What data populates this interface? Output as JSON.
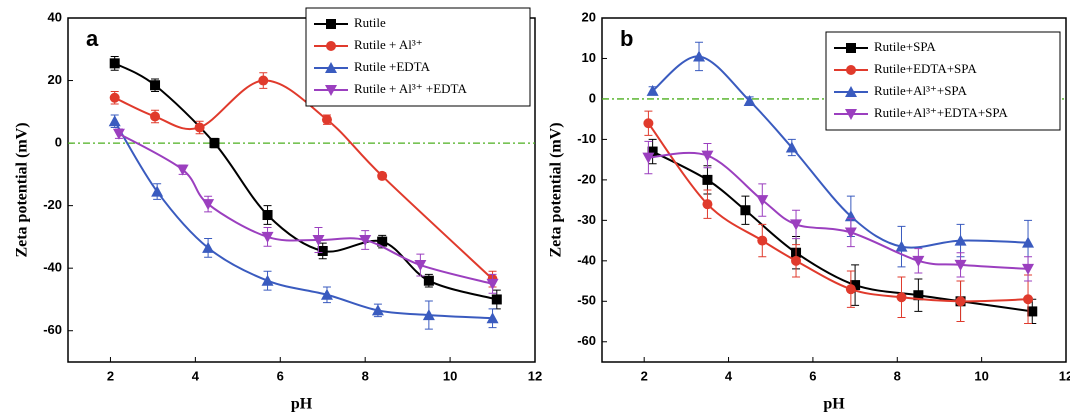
{
  "chart_data": [
    {
      "type": "line",
      "panel_label": "a",
      "x_label": "pH",
      "y_label": "Zeta potential (mV)",
      "xlim": [
        1,
        12
      ],
      "xticks": [
        2,
        4,
        6,
        8,
        10,
        12
      ],
      "ylim": [
        -70,
        40
      ],
      "yticks": [
        -60,
        -40,
        -20,
        0,
        20,
        40
      ],
      "hline": 0,
      "hline_color": "#4caf1f",
      "legend": "upper right",
      "series": [
        {
          "name": "Rutile",
          "color": "#000000",
          "marker": "square",
          "x": [
            2.1,
            3.05,
            4.45,
            5.7,
            7.0,
            8.4,
            9.5,
            11.1
          ],
          "values": [
            25.5,
            18.5,
            0,
            -23,
            -34.5,
            -31.5,
            -44,
            -50
          ],
          "errors": [
            2.2,
            2,
            1.5,
            3,
            2.5,
            2,
            2,
            3
          ]
        },
        {
          "name": "Rutile + Al³⁺",
          "color": "#e03a2c",
          "marker": "circle",
          "x": [
            2.1,
            3.05,
            4.1,
            5.6,
            7.1,
            8.4,
            11.0
          ],
          "values": [
            14.5,
            8.5,
            5,
            20,
            7.5,
            -10.5,
            -43.5
          ],
          "errors": [
            2,
            2,
            2,
            2.5,
            1.5,
            1,
            2.5
          ]
        },
        {
          "name": "Rutile +EDTA",
          "color": "#3a5bbf",
          "marker": "triangle-up",
          "x": [
            2.1,
            3.1,
            4.3,
            5.7,
            7.1,
            8.3,
            9.5,
            11.0
          ],
          "values": [
            7,
            -15.5,
            -33.5,
            -44,
            -48.5,
            -53.5,
            -55,
            -56
          ],
          "errors": [
            2,
            2.5,
            3,
            3,
            2.5,
            2,
            4.5,
            3
          ]
        },
        {
          "name": "Rutile + Al³⁺ +EDTA",
          "color": "#9b3fbf",
          "marker": "triangle-down",
          "x": [
            2.2,
            3.7,
            4.3,
            5.7,
            6.9,
            8.0,
            9.3,
            11.0
          ],
          "values": [
            3,
            -8.5,
            -19.5,
            -30,
            -31,
            -31,
            -39,
            -45
          ],
          "errors": [
            1.5,
            1.5,
            2.5,
            3,
            4,
            3,
            3.5,
            3
          ]
        }
      ]
    },
    {
      "type": "line",
      "panel_label": "b",
      "x_label": "pH",
      "y_label": "Zeta potential (mV)",
      "xlim": [
        1,
        12
      ],
      "xticks": [
        2,
        4,
        6,
        8,
        10,
        12
      ],
      "ylim": [
        -65,
        20
      ],
      "yticks": [
        -60,
        -50,
        -40,
        -30,
        -20,
        -10,
        0,
        10,
        20
      ],
      "hline": 0,
      "hline_color": "#4caf1f",
      "legend": "upper right",
      "series": [
        {
          "name": "Rutile+SPA",
          "color": "#000000",
          "marker": "square",
          "x": [
            2.2,
            3.5,
            4.4,
            5.6,
            7.0,
            8.5,
            9.5,
            11.2
          ],
          "values": [
            -13,
            -20,
            -27.5,
            -38,
            -46,
            -48.5,
            -50,
            -52.5
          ],
          "errors": [
            3,
            3.5,
            3.5,
            4,
            5,
            4,
            5,
            3
          ]
        },
        {
          "name": "Rutile+EDTA+SPA",
          "color": "#e03a2c",
          "marker": "circle",
          "x": [
            2.1,
            3.5,
            4.8,
            5.6,
            6.9,
            8.1,
            9.5,
            11.1
          ],
          "values": [
            -6,
            -26,
            -35,
            -40,
            -47,
            -49,
            -50,
            -49.5
          ],
          "errors": [
            3,
            3.5,
            4,
            4,
            4.5,
            5,
            5,
            6
          ]
        },
        {
          "name": "Rutile+Al³⁺+SPA",
          "color": "#3a5bbf",
          "marker": "triangle-up",
          "x": [
            2.2,
            3.3,
            4.5,
            5.5,
            6.9,
            8.1,
            9.5,
            11.1
          ],
          "values": [
            2,
            10.5,
            -0.5,
            -12,
            -29,
            -36.5,
            -35,
            -35.5
          ],
          "errors": [
            1,
            3.5,
            1,
            2,
            5,
            5,
            4,
            5.5
          ]
        },
        {
          "name": "Rutile+Al³⁺+EDTA+SPA",
          "color": "#9b3fbf",
          "marker": "triangle-down",
          "x": [
            2.1,
            3.5,
            4.8,
            5.6,
            6.9,
            8.5,
            9.5,
            11.1
          ],
          "values": [
            -14.5,
            -14,
            -25,
            -31,
            -33,
            -40,
            -41,
            -42
          ],
          "errors": [
            4,
            3,
            4,
            3.5,
            3.5,
            3,
            3,
            3
          ]
        }
      ]
    }
  ]
}
